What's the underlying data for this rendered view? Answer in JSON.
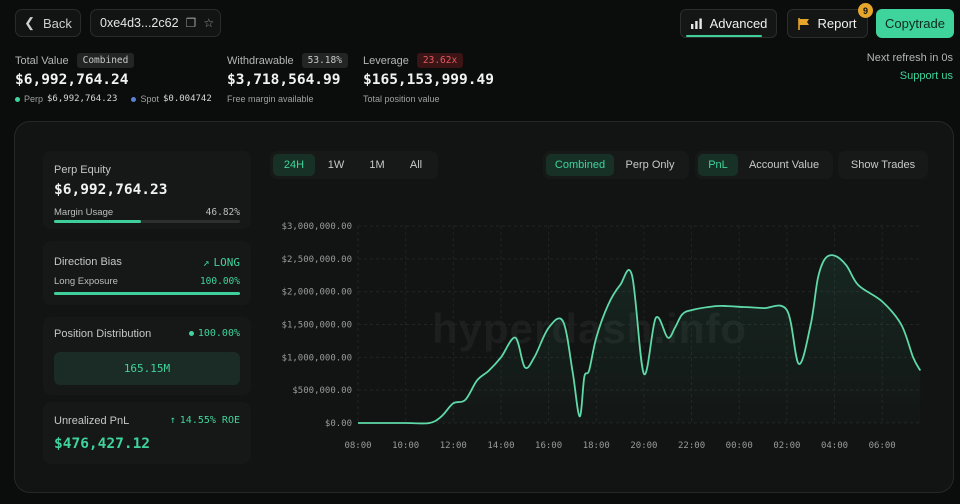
{
  "header": {
    "back_label": "Back",
    "address": "0xe4d3...2c62",
    "advanced_label": "Advanced",
    "report_label": "Report",
    "report_badge": "9",
    "copytrade_label": "Copytrade"
  },
  "stats": {
    "total_value": {
      "label": "Total Value",
      "pill": "Combined",
      "value": "$6,992,764.24",
      "perp_label": "Perp",
      "perp_value": "$6,992,764.23",
      "spot_label": "Spot",
      "spot_value": "$0.004742"
    },
    "withdrawable": {
      "label": "Withdrawable",
      "pill": "53.18%",
      "value": "$3,718,564.99",
      "sub": "Free margin available"
    },
    "leverage": {
      "label": "Leverage",
      "pill": "23.62x",
      "value": "$165,153,999.49",
      "sub": "Total position value"
    },
    "refresh": "Next refresh in 0s",
    "support": "Support us"
  },
  "cards": {
    "perp_equity": {
      "label": "Perp Equity",
      "value": "$6,992,764.23",
      "margin_label": "Margin Usage",
      "margin_value": "46.82%",
      "margin_fraction": 0.4682
    },
    "direction": {
      "label": "Direction Bias",
      "bias": "LONG",
      "exposure_label": "Long Exposure",
      "exposure_value": "100.00%",
      "exposure_fraction": 1.0
    },
    "distribution": {
      "label": "Position Distribution",
      "value": "100.00%",
      "box_value": "165.15M"
    },
    "unrealized": {
      "label": "Unrealized PnL",
      "roe": "14.55% ROE",
      "value": "$476,427.12"
    }
  },
  "tabs": {
    "range": [
      {
        "label": "24H",
        "active": true
      },
      {
        "label": "1W"
      },
      {
        "label": "1M"
      },
      {
        "label": "All"
      }
    ],
    "scope": [
      {
        "label": "Combined",
        "active": true
      },
      {
        "label": "Perp Only"
      }
    ],
    "metric": [
      {
        "label": "PnL",
        "active": true
      },
      {
        "label": "Account Value"
      }
    ],
    "trades": "Show Trades"
  },
  "watermark": "hyperdash.info",
  "colors": {
    "accent": "#3fd49c",
    "danger": "#e55a5f",
    "badge": "#e7a62b"
  },
  "chart_data": {
    "type": "area",
    "ylim": [
      0,
      3000000
    ],
    "y_ticks": [
      "$0.00",
      "$500,000.00",
      "$1,000,000.00",
      "$1,500,000.00",
      "$2,000,000.00",
      "$2,500,000.00",
      "$3,000,000.00"
    ],
    "x_ticks": [
      "08:00",
      "10:00",
      "12:00",
      "14:00",
      "16:00",
      "18:00",
      "20:00",
      "22:00",
      "00:00",
      "02:00",
      "04:00",
      "06:00"
    ],
    "series": [
      {
        "x_hours": [
          0,
          1,
          2,
          3,
          3.5,
          4,
          4.5,
          5,
          5.5,
          6,
          6.6,
          7,
          7.4,
          8,
          8.6,
          9,
          9.3,
          9.5,
          9.7,
          10,
          10.5,
          11,
          11.5,
          12,
          12.5,
          13,
          13.3,
          13.6,
          14,
          15,
          15.5,
          16,
          17,
          18,
          18.5,
          19,
          19.3,
          19.6,
          20,
          20.5,
          21,
          22,
          22.8,
          23.3,
          23.6
        ],
        "values": [
          0,
          0,
          0,
          0,
          100000,
          300000,
          350000,
          650000,
          800000,
          1000000,
          1300000,
          850000,
          1000000,
          1450000,
          1550000,
          800000,
          100000,
          700000,
          800000,
          1300000,
          1800000,
          2100000,
          2250000,
          750000,
          1600000,
          1300000,
          1450000,
          1650000,
          1720000,
          1780000,
          1780000,
          1770000,
          1750000,
          1720000,
          900000,
          1500000,
          2200000,
          2500000,
          2550000,
          2400000,
          2100000,
          1850000,
          1500000,
          1000000,
          800000
        ]
      }
    ]
  }
}
